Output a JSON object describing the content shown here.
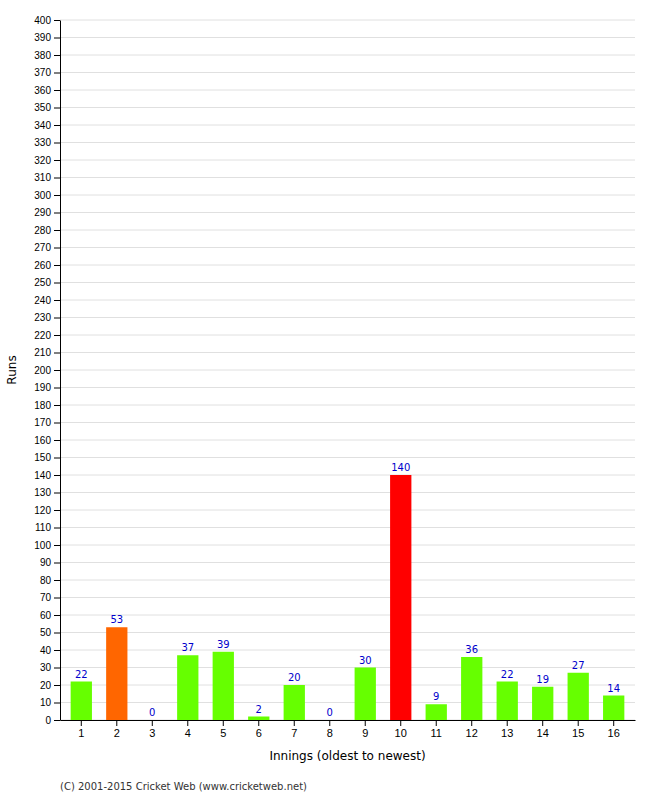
{
  "chart_data": {
    "type": "bar",
    "xlabel": "Innings (oldest to newest)",
    "ylabel": "Runs",
    "categories": [
      "1",
      "2",
      "3",
      "4",
      "5",
      "6",
      "7",
      "8",
      "9",
      "10",
      "11",
      "12",
      "13",
      "14",
      "15",
      "16"
    ],
    "values": [
      22,
      53,
      0,
      37,
      39,
      2,
      20,
      0,
      30,
      140,
      9,
      36,
      22,
      19,
      27,
      14
    ],
    "colors": [
      "#66ff00",
      "#ff6600",
      "#66ff00",
      "#66ff00",
      "#66ff00",
      "#66ff00",
      "#66ff00",
      "#66ff00",
      "#66ff00",
      "#ff0000",
      "#66ff00",
      "#66ff00",
      "#66ff00",
      "#66ff00",
      "#66ff00",
      "#66ff00"
    ],
    "ylim": [
      0,
      400
    ],
    "yticks": [
      0,
      10,
      20,
      30,
      40,
      50,
      60,
      70,
      80,
      90,
      100,
      110,
      120,
      130,
      140,
      150,
      160,
      170,
      180,
      190,
      200,
      210,
      220,
      230,
      240,
      250,
      260,
      270,
      280,
      290,
      300,
      310,
      320,
      330,
      340,
      350,
      360,
      370,
      380,
      390,
      400
    ],
    "grid": true,
    "data_labels": true,
    "annotations": [
      "(C) 2001-2015 Cricket Web (www.cricketweb.net)"
    ]
  }
}
